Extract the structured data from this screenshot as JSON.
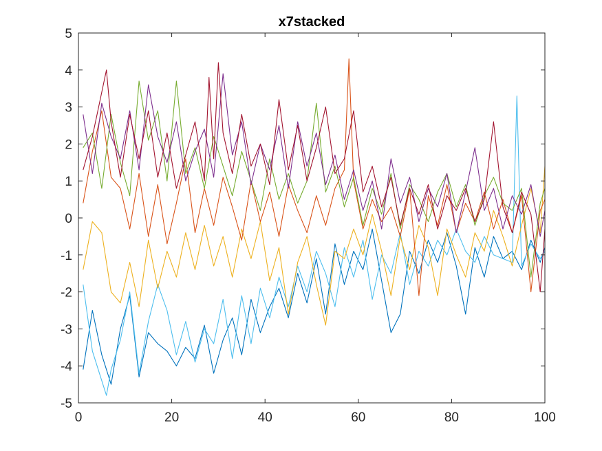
{
  "chart_data": {
    "type": "line",
    "title": "x7stacked",
    "xlabel": "",
    "ylabel": "",
    "xlim": [
      0,
      100
    ],
    "ylim": [
      -5,
      5
    ],
    "xticks": [
      0,
      20,
      40,
      60,
      80,
      100
    ],
    "yticks": [
      -5,
      -4,
      -3,
      -2,
      -1,
      0,
      1,
      2,
      3,
      4,
      5
    ],
    "grid": false,
    "box": true,
    "legend": "none",
    "colors": [
      "#0072BD",
      "#4DBEEE",
      "#EDB120",
      "#D95319",
      "#77AC30",
      "#7E2F8E",
      "#A2142F"
    ],
    "series": [
      {
        "color": "#0072BD",
        "x": [
          1,
          3,
          5,
          7,
          9,
          11,
          13,
          15,
          17,
          19,
          21,
          23,
          25,
          27,
          29,
          31,
          33,
          35,
          37,
          39,
          41,
          43,
          45,
          47,
          49,
          51,
          53,
          55,
          57,
          59,
          61,
          63,
          65,
          67,
          69,
          71,
          73,
          75,
          77,
          79,
          81,
          83,
          85,
          87,
          89,
          91,
          93,
          95,
          97,
          99,
          100
        ],
        "y": [
          -4.1,
          -2.5,
          -3.7,
          -4.5,
          -3.0,
          -2.1,
          -4.3,
          -3.1,
          -3.4,
          -3.6,
          -4.0,
          -3.5,
          -3.8,
          -2.9,
          -4.2,
          -3.3,
          -2.7,
          -3.7,
          -2.2,
          -3.1,
          -2.4,
          -1.9,
          -2.7,
          -1.5,
          -2.3,
          -1.1,
          -2.6,
          -0.7,
          -1.8,
          -0.9,
          -1.4,
          -0.3,
          -1.7,
          -3.1,
          -2.6,
          -0.9,
          -1.5,
          -0.6,
          -1.2,
          -0.4,
          -1.3,
          -2.6,
          -0.8,
          -1.6,
          -0.5,
          -1.1,
          -0.9,
          -1.4,
          -0.6,
          -1.2,
          -0.8
        ]
      },
      {
        "color": "#4DBEEE",
        "x": [
          1,
          3,
          5,
          6,
          7,
          9,
          11,
          13,
          15,
          17,
          19,
          21,
          23,
          25,
          27,
          29,
          31,
          33,
          35,
          37,
          39,
          41,
          43,
          45,
          47,
          49,
          51,
          53,
          55,
          57,
          59,
          61,
          63,
          65,
          67,
          69,
          71,
          73,
          75,
          77,
          79,
          81,
          83,
          85,
          87,
          89,
          91,
          93,
          94,
          95,
          97,
          99,
          100
        ],
        "y": [
          -1.8,
          -3.6,
          -4.4,
          -4.8,
          -4.1,
          -3.3,
          -2.0,
          -4.2,
          -2.8,
          -1.8,
          -2.5,
          -3.7,
          -2.8,
          -3.9,
          -3.0,
          -3.4,
          -2.2,
          -3.8,
          -2.1,
          -3.4,
          -1.9,
          -2.7,
          -1.6,
          -2.4,
          -1.3,
          -2.0,
          -0.9,
          -1.5,
          -2.4,
          -0.8,
          -1.6,
          -0.6,
          -2.2,
          -1.0,
          -1.5,
          -0.4,
          -1.8,
          -0.9,
          -1.3,
          -0.6,
          -1.0,
          -0.3,
          -0.9,
          -1.2,
          -0.5,
          -1.0,
          -1.1,
          -1.2,
          3.3,
          -1.3,
          -0.7,
          -1.1,
          -0.9
        ]
      },
      {
        "color": "#EDB120",
        "x": [
          1,
          3,
          5,
          7,
          9,
          11,
          13,
          15,
          17,
          19,
          21,
          23,
          25,
          27,
          29,
          31,
          33,
          35,
          37,
          39,
          41,
          43,
          45,
          47,
          49,
          51,
          53,
          55,
          57,
          59,
          61,
          63,
          65,
          67,
          69,
          71,
          73,
          75,
          77,
          79,
          81,
          83,
          85,
          87,
          89,
          91,
          93,
          95,
          97,
          99,
          100
        ],
        "y": [
          -1.4,
          -0.1,
          -0.4,
          -2.0,
          -2.3,
          -1.2,
          -2.4,
          -0.6,
          -1.9,
          -0.9,
          -1.6,
          -0.4,
          -1.4,
          -0.2,
          -1.3,
          -0.5,
          -1.6,
          -0.3,
          -1.1,
          -0.1,
          -1.7,
          -0.8,
          -2.6,
          -1.2,
          -0.5,
          -1.8,
          -2.9,
          -0.9,
          -1.1,
          -0.3,
          -1.0,
          0.1,
          -0.9,
          -2.1,
          -0.5,
          -1.4,
          -0.2,
          -0.8,
          -2.1,
          -0.3,
          -1.0,
          -1.6,
          -0.4,
          -0.9,
          0.2,
          -0.5,
          -1.3,
          -0.2,
          0.8,
          -0.4,
          1.4
        ]
      },
      {
        "color": "#D95319",
        "x": [
          1,
          3,
          5,
          7,
          9,
          11,
          13,
          15,
          17,
          19,
          21,
          23,
          25,
          27,
          29,
          31,
          33,
          35,
          37,
          39,
          41,
          43,
          45,
          47,
          49,
          51,
          53,
          55,
          57,
          58,
          59,
          61,
          63,
          65,
          67,
          69,
          71,
          73,
          75,
          77,
          79,
          81,
          83,
          85,
          87,
          89,
          91,
          93,
          95,
          97,
          99,
          100
        ],
        "y": [
          0.4,
          1.8,
          2.9,
          1.1,
          0.8,
          -0.3,
          1.2,
          -0.5,
          0.9,
          -0.7,
          0.4,
          1.6,
          -0.4,
          0.8,
          -0.2,
          1.1,
          0.3,
          -0.6,
          1.0,
          -0.1,
          0.7,
          -0.5,
          0.9,
          0.2,
          -0.4,
          0.6,
          -0.2,
          0.8,
          1.3,
          4.3,
          1.0,
          -0.3,
          0.5,
          -0.1,
          0.3,
          -0.5,
          0.8,
          -2.1,
          0.6,
          -0.2,
          0.9,
          -0.4,
          0.4,
          -0.1,
          0.7,
          -0.3,
          0.5,
          -0.4,
          0.6,
          -2.0,
          0.2,
          0.5
        ]
      },
      {
        "color": "#77AC30",
        "x": [
          1,
          3,
          5,
          7,
          9,
          11,
          13,
          15,
          17,
          19,
          21,
          23,
          25,
          27,
          29,
          31,
          33,
          35,
          37,
          39,
          41,
          43,
          45,
          47,
          49,
          51,
          53,
          55,
          57,
          59,
          61,
          63,
          65,
          67,
          69,
          71,
          73,
          75,
          77,
          79,
          81,
          83,
          85,
          87,
          89,
          91,
          93,
          95,
          97,
          99,
          100
        ],
        "y": [
          1.9,
          2.3,
          0.8,
          2.8,
          1.5,
          0.6,
          3.7,
          2.1,
          2.9,
          1.0,
          3.7,
          1.2,
          1.9,
          0.8,
          2.2,
          1.4,
          0.6,
          1.8,
          1.0,
          0.2,
          1.6,
          0.5,
          1.2,
          0.4,
          1.0,
          3.1,
          0.7,
          1.4,
          0.3,
          1.1,
          -0.2,
          0.8,
          0.1,
          1.2,
          -0.3,
          0.9,
          0.5,
          -0.1,
          0.7,
          1.2,
          0.3,
          0.9,
          -0.2,
          0.6,
          1.1,
          0.4,
          0.2,
          0.8,
          -1.6,
          0.4,
          0.8
        ]
      },
      {
        "color": "#7E2F8E",
        "x": [
          1,
          3,
          5,
          7,
          9,
          11,
          13,
          15,
          17,
          19,
          21,
          23,
          25,
          27,
          29,
          31,
          33,
          35,
          37,
          39,
          41,
          43,
          45,
          47,
          49,
          51,
          53,
          55,
          57,
          59,
          61,
          63,
          65,
          67,
          69,
          71,
          73,
          75,
          77,
          79,
          81,
          83,
          85,
          87,
          89,
          91,
          93,
          95,
          97,
          99,
          100
        ],
        "y": [
          2.8,
          1.2,
          3.1,
          2.2,
          1.6,
          2.9,
          1.3,
          3.6,
          2.2,
          1.5,
          2.6,
          1.0,
          1.8,
          2.4,
          1.1,
          3.9,
          1.7,
          2.6,
          0.9,
          2.0,
          1.3,
          2.5,
          0.8,
          2.6,
          1.4,
          2.3,
          0.9,
          1.7,
          0.5,
          1.3,
          0.2,
          1.0,
          -0.3,
          1.6,
          0.4,
          1.1,
          -0.1,
          0.8,
          0.3,
          1.2,
          -0.4,
          0.7,
          1.9,
          0.2,
          0.8,
          -0.3,
          0.6,
          0.1,
          0.9,
          -0.5,
          0.2
        ]
      },
      {
        "color": "#A2142F",
        "x": [
          1,
          3,
          5,
          6,
          7,
          9,
          11,
          13,
          15,
          17,
          19,
          21,
          23,
          25,
          27,
          28,
          29,
          30,
          31,
          33,
          35,
          37,
          39,
          41,
          43,
          45,
          47,
          49,
          51,
          53,
          55,
          57,
          59,
          61,
          63,
          65,
          67,
          69,
          71,
          73,
          75,
          77,
          79,
          81,
          83,
          85,
          87,
          89,
          91,
          93,
          95,
          97,
          99,
          100
        ],
        "y": [
          1.3,
          2.2,
          3.4,
          4.0,
          2.6,
          1.1,
          2.8,
          1.6,
          2.9,
          1.1,
          2.3,
          0.8,
          1.7,
          2.6,
          1.0,
          3.8,
          1.6,
          4.2,
          2.3,
          1.2,
          2.8,
          1.4,
          2.0,
          0.9,
          3.2,
          1.3,
          2.5,
          1.0,
          1.9,
          3.0,
          1.2,
          1.6,
          2.9,
          0.7,
          1.4,
          0.3,
          1.1,
          -0.2,
          0.8,
          0.1,
          0.9,
          -0.3,
          0.6,
          0.2,
          0.8,
          -0.1,
          0.5,
          2.6,
          0.3,
          -0.4,
          0.7,
          0.1,
          -2.0,
          -0.3
        ]
      }
    ]
  }
}
